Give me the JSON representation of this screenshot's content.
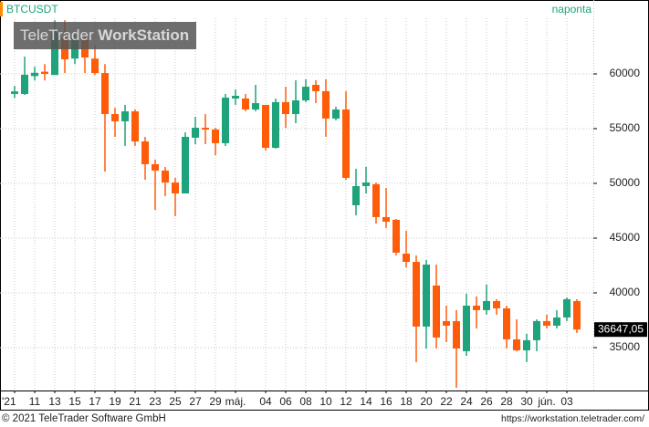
{
  "chart_data": {
    "type": "candlestick",
    "title": "BTCUSDT",
    "subtitle": "naponta",
    "watermark": [
      "TeleTrader",
      "WorkStation"
    ],
    "footer_left": "© 2021 TeleTrader Software GmbH",
    "footer_right": "https://workstation.teletrader.com/",
    "categories": [
      "'21",
      null,
      "11",
      null,
      "13",
      null,
      "15",
      null,
      "17",
      null,
      "19",
      null,
      "21",
      null,
      "23",
      null,
      "25",
      null,
      "27",
      null,
      "29",
      null,
      "máj.",
      null,
      null,
      "04",
      null,
      "06",
      null,
      "08",
      null,
      "10",
      null,
      "12",
      null,
      "14",
      null,
      "16",
      null,
      "18",
      null,
      "20",
      null,
      "22",
      null,
      "24",
      null,
      "26",
      null,
      "28",
      null,
      "30",
      null,
      "jún.",
      null,
      "03",
      null
    ],
    "open": [
      58170,
      58170,
      59800,
      60200,
      59900,
      63250,
      61400,
      63100,
      61400,
      60080,
      56330,
      55670,
      56580,
      53830,
      51750,
      51170,
      50080,
      49080,
      54170,
      55080,
      54920,
      53670,
      57750,
      57750,
      56750,
      57170,
      53250,
      57420,
      56330,
      57580,
      59000,
      58420,
      55920,
      56750,
      48000,
      49750,
      49920,
      46920,
      46670,
      43580,
      42830,
      36920,
      40670,
      37420,
      37420,
      34670,
      38830,
      38420,
      39250,
      38580,
      35750,
      34750,
      35670,
      37420,
      37000,
      37750,
      39250
    ],
    "high": [
      58900,
      61580,
      60650,
      60900,
      64900,
      64900,
      63600,
      63400,
      62600,
      60900,
      56900,
      57170,
      56750,
      54250,
      52170,
      51500,
      50500,
      54670,
      56080,
      56330,
      55080,
      58170,
      58580,
      58170,
      59000,
      57170,
      57750,
      58830,
      59420,
      59500,
      59420,
      59500,
      57000,
      58420,
      51330,
      51500,
      50080,
      49580,
      46750,
      45670,
      43420,
      43000,
      42580,
      38830,
      38420,
      39920,
      39670,
      40750,
      39420,
      38830,
      37580,
      36250,
      37580,
      38000,
      38420,
      39580,
      39420
    ],
    "low": [
      57800,
      58080,
      59400,
      59400,
      59900,
      60080,
      60900,
      60080,
      59900,
      51080,
      54250,
      53420,
      53420,
      50330,
      47580,
      48830,
      47000,
      49080,
      53580,
      53580,
      52580,
      53420,
      57170,
      56580,
      56580,
      53000,
      53170,
      55080,
      55500,
      57420,
      57330,
      54250,
      55750,
      50330,
      47080,
      49080,
      46330,
      45920,
      43420,
      42330,
      33670,
      34920,
      34920,
      35500,
      31330,
      34250,
      36750,
      38000,
      38000,
      34920,
      34670,
      33670,
      34670,
      36750,
      36750,
      37420,
      36330
    ],
    "close": [
      58400,
      59920,
      60100,
      60000,
      63800,
      61330,
      63250,
      61500,
      60080,
      56330,
      55670,
      56580,
      53830,
      51750,
      51170,
      50080,
      49080,
      54250,
      55080,
      54920,
      53670,
      57830,
      58000,
      56750,
      57330,
      53250,
      57420,
      56330,
      57580,
      58830,
      58420,
      55920,
      56750,
      50500,
      49750,
      50080,
      46920,
      46500,
      43670,
      42830,
      36920,
      42580,
      35920,
      37000,
      34920,
      38830,
      38420,
      39250,
      38580,
      35750,
      34750,
      35670,
      37420,
      37000,
      37750,
      39420,
      36647.05
    ],
    "last_price": {
      "value": 36647.05,
      "label": "36647,05"
    },
    "up_color": "#1ea37c",
    "down_color": "#ff5c0a",
    "ylim": [
      31080,
      66750
    ],
    "yticks": [
      35000,
      40000,
      45000,
      50000,
      55000,
      60000
    ],
    "grid": true
  }
}
